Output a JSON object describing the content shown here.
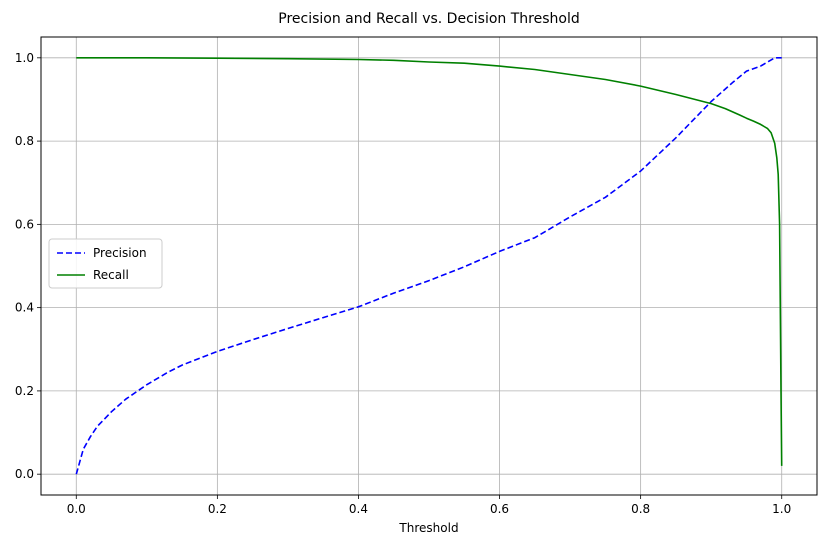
{
  "chart_data": {
    "type": "line",
    "title": "Precision and Recall vs. Decision Threshold",
    "xlabel": "Threshold",
    "ylabel": "",
    "xlim": [
      -0.05,
      1.05
    ],
    "ylim": [
      -0.05,
      1.05
    ],
    "xticks": [
      0.0,
      0.2,
      0.4,
      0.6,
      0.8,
      1.0
    ],
    "xtick_labels": [
      "0.0",
      "0.2",
      "0.4",
      "0.6",
      "0.8",
      "1.0"
    ],
    "yticks": [
      0.0,
      0.2,
      0.4,
      0.6,
      0.8,
      1.0
    ],
    "ytick_labels": [
      "0.0",
      "0.2",
      "0.4",
      "0.6",
      "0.8",
      "1.0"
    ],
    "grid": true,
    "legend_position": "center-left",
    "series": [
      {
        "name": "Precision",
        "color": "#0000ff",
        "style": "dashed",
        "x": [
          0.0,
          0.005,
          0.01,
          0.02,
          0.03,
          0.05,
          0.07,
          0.1,
          0.13,
          0.15,
          0.2,
          0.25,
          0.3,
          0.35,
          0.4,
          0.45,
          0.5,
          0.55,
          0.6,
          0.65,
          0.7,
          0.75,
          0.8,
          0.85,
          0.9,
          0.93,
          0.95,
          0.97,
          0.98,
          0.99,
          1.0
        ],
        "y": [
          0.0,
          0.03,
          0.06,
          0.09,
          0.115,
          0.15,
          0.18,
          0.215,
          0.245,
          0.262,
          0.295,
          0.323,
          0.35,
          0.376,
          0.402,
          0.435,
          0.465,
          0.498,
          0.535,
          0.568,
          0.618,
          0.665,
          0.728,
          0.808,
          0.895,
          0.94,
          0.968,
          0.98,
          0.99,
          1.0,
          1.0
        ]
      },
      {
        "name": "Recall",
        "color": "#008000",
        "style": "solid",
        "x": [
          0.0,
          0.1,
          0.2,
          0.3,
          0.4,
          0.45,
          0.5,
          0.55,
          0.6,
          0.65,
          0.7,
          0.75,
          0.8,
          0.85,
          0.9,
          0.92,
          0.94,
          0.95,
          0.96,
          0.97,
          0.975,
          0.98,
          0.985,
          0.99,
          0.993,
          0.995,
          0.997,
          0.998,
          0.999,
          1.0
        ],
        "y": [
          1.0,
          1.0,
          0.999,
          0.998,
          0.996,
          0.994,
          0.99,
          0.987,
          0.98,
          0.972,
          0.96,
          0.948,
          0.932,
          0.912,
          0.89,
          0.878,
          0.863,
          0.855,
          0.848,
          0.84,
          0.835,
          0.83,
          0.82,
          0.795,
          0.76,
          0.72,
          0.6,
          0.4,
          0.2,
          0.02
        ]
      }
    ]
  }
}
